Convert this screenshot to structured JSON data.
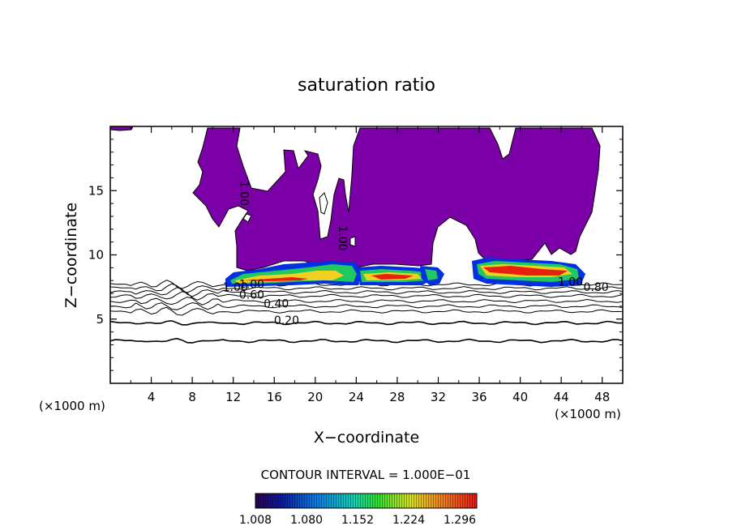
{
  "chart_data": {
    "type": "contour",
    "title": "saturation ratio",
    "xlabel": "X−coordinate",
    "ylabel": "Z−coordinate",
    "x_units_left": "(×1000 m)",
    "x_units_right": "(×1000 m)",
    "xlim": [
      0,
      50
    ],
    "ylim": [
      0,
      20
    ],
    "xticks": [
      4,
      8,
      12,
      16,
      20,
      24,
      28,
      32,
      36,
      40,
      44,
      48
    ],
    "yticks": [
      5,
      10,
      15
    ],
    "contour_interval_label": "CONTOUR INTERVAL = 1.000E−01",
    "contour_levels": [
      0.2,
      0.3,
      0.4,
      0.5,
      0.6,
      0.7,
      0.8,
      0.9,
      1.0
    ],
    "contour_labels": [
      {
        "text": "0.20",
        "x": 17.2,
        "z": 4.6
      },
      {
        "text": "0.40",
        "x": 16.2,
        "z": 5.9
      },
      {
        "text": "0.60",
        "x": 13.8,
        "z": 6.6
      },
      {
        "text": "1.00",
        "x": 13.8,
        "z": 7.4
      },
      {
        "text": "1.00",
        "x": 12.2,
        "z": 7.2
      },
      {
        "text": "1.00",
        "x": 44.9,
        "z": 7.6
      },
      {
        "text": "0.80",
        "x": 47.4,
        "z": 7.2
      },
      {
        "text": "1.00",
        "x": 12.7,
        "z": 14.8
      },
      {
        "text": "1.00",
        "x": 22.3,
        "z": 11.3
      }
    ],
    "colorbar": {
      "min": 1.008,
      "max": 1.32,
      "tick_labels": [
        "1.008",
        "1.080",
        "1.152",
        "1.224",
        "1.296"
      ]
    },
    "colors": {
      "cloud_fill": "#7b00a8",
      "bar_low": "#1a0070",
      "bar_high": "#e02000"
    }
  }
}
